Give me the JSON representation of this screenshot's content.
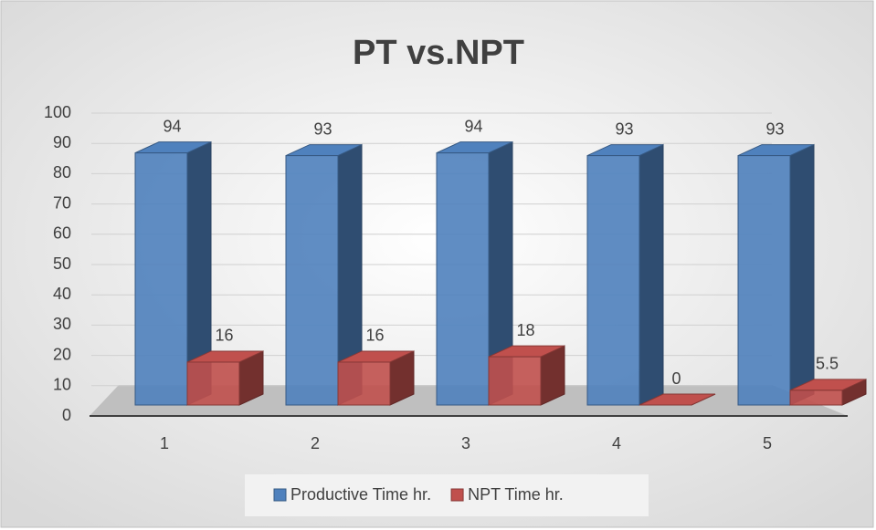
{
  "chart_data": {
    "type": "bar3d",
    "title": "PT vs.NPT",
    "categories": [
      "1",
      "2",
      "3",
      "4",
      "5"
    ],
    "series": [
      {
        "name": "Productive Time hr.",
        "color": "#4f81bd",
        "values": [
          94,
          93,
          94,
          93,
          93
        ]
      },
      {
        "name": "NPT Time hr.",
        "color": "#c0504d",
        "values": [
          16,
          16,
          18,
          0,
          5.5
        ]
      }
    ],
    "ylim": [
      0,
      100
    ],
    "yticks": [
      0,
      10,
      20,
      30,
      40,
      50,
      60,
      70,
      80,
      90,
      100
    ],
    "grid": true,
    "legend": "bottom"
  }
}
